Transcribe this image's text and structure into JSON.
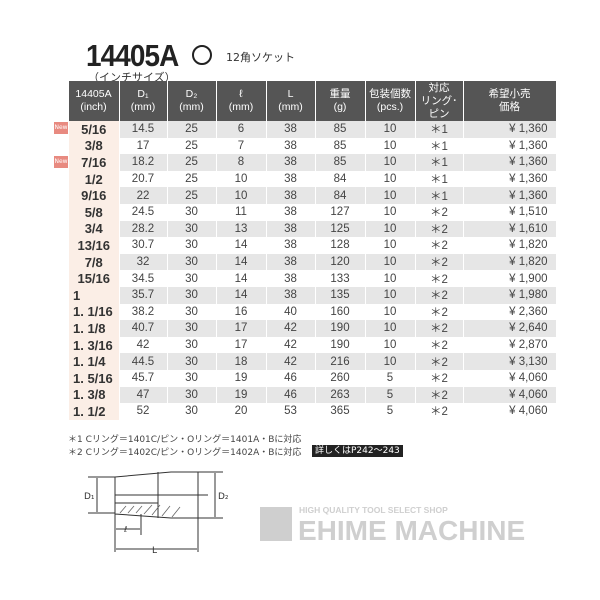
{
  "title": "14405A",
  "subtitle": "（インチサイズ）",
  "socket_type": "12角ソケット",
  "table": {
    "headers": [
      [
        "14405A",
        "(inch)"
      ],
      [
        "D₁",
        "(mm)"
      ],
      [
        "D₂",
        "(mm)"
      ],
      [
        "ℓ",
        "(mm)"
      ],
      [
        "L",
        "(mm)"
      ],
      [
        "重量",
        "(g)"
      ],
      [
        "包装個数",
        "(pcs.)"
      ],
      [
        "対応",
        "リング･ピン"
      ],
      [
        "希望小売",
        "価格"
      ]
    ],
    "rows": [
      {
        "new": true,
        "size": "5/16",
        "d1": "14.5",
        "d2": "25",
        "l_small": "6",
        "L": "38",
        "weight": "85",
        "pcs": "10",
        "ring": "＊1",
        "price": "¥ 1,360"
      },
      {
        "new": false,
        "size": "3/8",
        "d1": "17",
        "d2": "25",
        "l_small": "7",
        "L": "38",
        "weight": "85",
        "pcs": "10",
        "ring": "＊1",
        "price": "¥ 1,360"
      },
      {
        "new": true,
        "size": "7/16",
        "d1": "18.2",
        "d2": "25",
        "l_small": "8",
        "L": "38",
        "weight": "85",
        "pcs": "10",
        "ring": "＊1",
        "price": "¥ 1,360"
      },
      {
        "new": false,
        "size": "1/2",
        "d1": "20.7",
        "d2": "25",
        "l_small": "10",
        "L": "38",
        "weight": "84",
        "pcs": "10",
        "ring": "＊1",
        "price": "¥ 1,360"
      },
      {
        "new": false,
        "size": "9/16",
        "d1": "22",
        "d2": "25",
        "l_small": "10",
        "L": "38",
        "weight": "84",
        "pcs": "10",
        "ring": "＊1",
        "price": "¥ 1,360"
      },
      {
        "new": false,
        "size": "5/8",
        "d1": "24.5",
        "d2": "30",
        "l_small": "11",
        "L": "38",
        "weight": "127",
        "pcs": "10",
        "ring": "＊2",
        "price": "¥ 1,510"
      },
      {
        "new": false,
        "size": "3/4",
        "d1": "28.2",
        "d2": "30",
        "l_small": "13",
        "L": "38",
        "weight": "125",
        "pcs": "10",
        "ring": "＊2",
        "price": "¥ 1,610"
      },
      {
        "new": false,
        "size": "13/16",
        "d1": "30.7",
        "d2": "30",
        "l_small": "14",
        "L": "38",
        "weight": "128",
        "pcs": "10",
        "ring": "＊2",
        "price": "¥ 1,820"
      },
      {
        "new": false,
        "size": "7/8",
        "d1": "32",
        "d2": "30",
        "l_small": "14",
        "L": "38",
        "weight": "120",
        "pcs": "10",
        "ring": "＊2",
        "price": "¥ 1,820"
      },
      {
        "new": false,
        "size": "15/16",
        "d1": "34.5",
        "d2": "30",
        "l_small": "14",
        "L": "38",
        "weight": "133",
        "pcs": "10",
        "ring": "＊2",
        "price": "¥ 1,900"
      },
      {
        "new": false,
        "size": "1",
        "d1": "35.7",
        "d2": "30",
        "l_small": "14",
        "L": "38",
        "weight": "135",
        "pcs": "10",
        "ring": "＊2",
        "price": "¥ 1,980"
      },
      {
        "new": false,
        "size": "1. 1/16",
        "d1": "38.2",
        "d2": "30",
        "l_small": "16",
        "L": "40",
        "weight": "160",
        "pcs": "10",
        "ring": "＊2",
        "price": "¥ 2,360"
      },
      {
        "new": false,
        "size": "1. 1/8",
        "d1": "40.7",
        "d2": "30",
        "l_small": "17",
        "L": "42",
        "weight": "190",
        "pcs": "10",
        "ring": "＊2",
        "price": "¥ 2,640"
      },
      {
        "new": false,
        "size": "1. 3/16",
        "d1": "42",
        "d2": "30",
        "l_small": "17",
        "L": "42",
        "weight": "190",
        "pcs": "10",
        "ring": "＊2",
        "price": "¥ 2,870"
      },
      {
        "new": false,
        "size": "1. 1/4",
        "d1": "44.5",
        "d2": "30",
        "l_small": "18",
        "L": "42",
        "weight": "216",
        "pcs": "10",
        "ring": "＊2",
        "price": "¥ 3,130"
      },
      {
        "new": false,
        "size": "1. 5/16",
        "d1": "45.7",
        "d2": "30",
        "l_small": "19",
        "L": "46",
        "weight": "260",
        "pcs": "5",
        "ring": "＊2",
        "price": "¥ 4,060"
      },
      {
        "new": false,
        "size": "1. 3/8",
        "d1": "47",
        "d2": "30",
        "l_small": "19",
        "L": "46",
        "weight": "263",
        "pcs": "5",
        "ring": "＊2",
        "price": "¥ 4,060"
      },
      {
        "new": false,
        "size": "1. 1/2",
        "d1": "52",
        "d2": "30",
        "l_small": "20",
        "L": "53",
        "weight": "365",
        "pcs": "5",
        "ring": "＊2",
        "price": "¥ 4,060"
      }
    ]
  },
  "new_badge": "New",
  "notes": [
    "＊1 Cリング＝1401C/ピン・Oリング＝1401A・Bに対応",
    "＊2 Cリング＝1402C/ピン・Oリング＝1402A・Bに対応"
  ],
  "reference": "詳しくはP242～243",
  "diagram": {
    "d1": "D₁",
    "d2": "D₂",
    "l_small": "ℓ",
    "L": "L"
  },
  "logo": {
    "tagline": "HIGH QUALITY TOOL SELECT SHOP",
    "name": "EHIME MACHINE",
    "color": "#cfcfcf"
  },
  "colors": {
    "header": "#555555",
    "stripe": "#e6e6e6",
    "size_col": "#fbeee6",
    "new_badge": "#e88a80"
  }
}
